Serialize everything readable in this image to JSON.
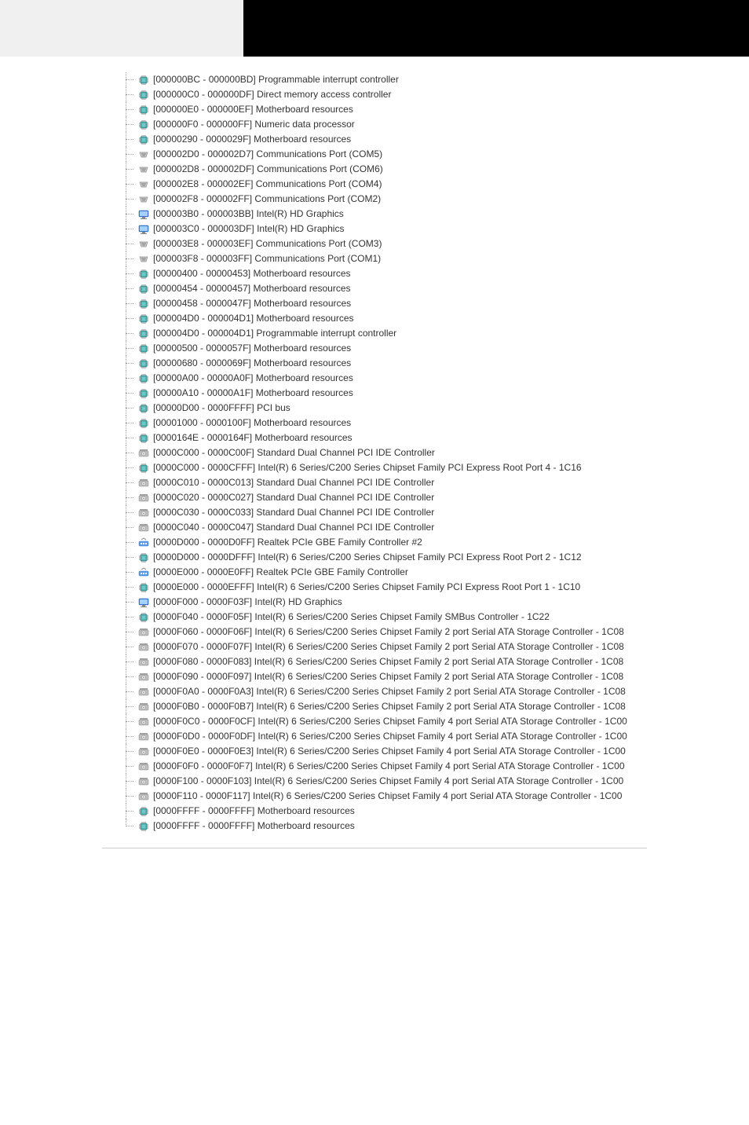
{
  "colors": {
    "text": "#333333",
    "background": "#ffffff",
    "header_left_bg": "#f0f0f0",
    "header_right_bg": "#000000",
    "tree_line": "#a0a0a0",
    "icon_blue": "#3b7dd8",
    "icon_teal": "#4aa8a8",
    "icon_gray": "#808080",
    "footer_line": "#cccccc"
  },
  "fonts": {
    "family": "Segoe UI",
    "size_pt": 9
  },
  "items": [
    {
      "icon": "chip",
      "range": "[000000BC - 000000BD]",
      "label": "Programmable interrupt controller"
    },
    {
      "icon": "chip",
      "range": "[000000C0 - 000000DF]",
      "label": "Direct memory access controller"
    },
    {
      "icon": "chip",
      "range": "[000000E0 - 000000EF]",
      "label": "Motherboard resources"
    },
    {
      "icon": "chip",
      "range": "[000000F0 - 000000FF]",
      "label": "Numeric data processor"
    },
    {
      "icon": "chip",
      "range": "[00000290 - 0000029F]",
      "label": "Motherboard resources"
    },
    {
      "icon": "port",
      "range": "[000002D0 - 000002D7]",
      "label": "Communications Port (COM5)"
    },
    {
      "icon": "port",
      "range": "[000002D8 - 000002DF]",
      "label": "Communications Port (COM6)"
    },
    {
      "icon": "port",
      "range": "[000002E8 - 000002EF]",
      "label": "Communications Port (COM4)"
    },
    {
      "icon": "port",
      "range": "[000002F8 - 000002FF]",
      "label": "Communications Port (COM2)"
    },
    {
      "icon": "display",
      "range": "[000003B0 - 000003BB]",
      "label": "Intel(R) HD Graphics"
    },
    {
      "icon": "display",
      "range": "[000003C0 - 000003DF]",
      "label": "Intel(R) HD Graphics"
    },
    {
      "icon": "port",
      "range": "[000003E8 - 000003EF]",
      "label": "Communications Port (COM3)"
    },
    {
      "icon": "port",
      "range": "[000003F8 - 000003FF]",
      "label": "Communications Port (COM1)"
    },
    {
      "icon": "chip",
      "range": "[00000400 - 00000453]",
      "label": "Motherboard resources"
    },
    {
      "icon": "chip",
      "range": "[00000454 - 00000457]",
      "label": "Motherboard resources"
    },
    {
      "icon": "chip",
      "range": "[00000458 - 0000047F]",
      "label": "Motherboard resources"
    },
    {
      "icon": "chip",
      "range": "[000004D0 - 000004D1]",
      "label": "Motherboard resources"
    },
    {
      "icon": "chip",
      "range": "[000004D0 - 000004D1]",
      "label": "Programmable interrupt controller"
    },
    {
      "icon": "chip",
      "range": "[00000500 - 0000057F]",
      "label": "Motherboard resources"
    },
    {
      "icon": "chip",
      "range": "[00000680 - 0000069F]",
      "label": "Motherboard resources"
    },
    {
      "icon": "chip",
      "range": "[00000A00 - 00000A0F]",
      "label": "Motherboard resources"
    },
    {
      "icon": "chip",
      "range": "[00000A10 - 00000A1F]",
      "label": "Motherboard resources"
    },
    {
      "icon": "chip",
      "range": "[00000D00 - 0000FFFF]",
      "label": "PCI bus"
    },
    {
      "icon": "chip",
      "range": "[00001000 - 0000100F]",
      "label": "Motherboard resources"
    },
    {
      "icon": "chip",
      "range": "[0000164E - 0000164F]",
      "label": "Motherboard resources"
    },
    {
      "icon": "storage",
      "range": "[0000C000 - 0000C00F]",
      "label": "Standard Dual Channel PCI IDE Controller"
    },
    {
      "icon": "chip",
      "range": "[0000C000 - 0000CFFF]",
      "label": "Intel(R) 6 Series/C200 Series Chipset Family PCI Express Root Port 4 - 1C16"
    },
    {
      "icon": "storage",
      "range": "[0000C010 - 0000C013]",
      "label": "Standard Dual Channel PCI IDE Controller"
    },
    {
      "icon": "storage",
      "range": "[0000C020 - 0000C027]",
      "label": "Standard Dual Channel PCI IDE Controller"
    },
    {
      "icon": "storage",
      "range": "[0000C030 - 0000C033]",
      "label": "Standard Dual Channel PCI IDE Controller"
    },
    {
      "icon": "storage",
      "range": "[0000C040 - 0000C047]",
      "label": "Standard Dual Channel PCI IDE Controller"
    },
    {
      "icon": "network",
      "range": "[0000D000 - 0000D0FF]",
      "label": "Realtek PCIe GBE Family Controller #2"
    },
    {
      "icon": "chip",
      "range": "[0000D000 - 0000DFFF]",
      "label": "Intel(R) 6 Series/C200 Series Chipset Family PCI Express Root Port 2 - 1C12"
    },
    {
      "icon": "network",
      "range": "[0000E000 - 0000E0FF]",
      "label": "Realtek PCIe GBE Family Controller"
    },
    {
      "icon": "chip",
      "range": "[0000E000 - 0000EFFF]",
      "label": "Intel(R) 6 Series/C200 Series Chipset Family PCI Express Root Port 1 - 1C10"
    },
    {
      "icon": "display",
      "range": "[0000F000 - 0000F03F]",
      "label": "Intel(R) HD Graphics"
    },
    {
      "icon": "chip",
      "range": "[0000F040 - 0000F05F]",
      "label": "Intel(R) 6 Series/C200 Series Chipset Family SMBus Controller - 1C22"
    },
    {
      "icon": "storage",
      "range": "[0000F060 - 0000F06F]",
      "label": "Intel(R) 6 Series/C200 Series Chipset Family 2 port Serial ATA Storage Controller - 1C08"
    },
    {
      "icon": "storage",
      "range": "[0000F070 - 0000F07F]",
      "label": "Intel(R) 6 Series/C200 Series Chipset Family 2 port Serial ATA Storage Controller - 1C08"
    },
    {
      "icon": "storage",
      "range": "[0000F080 - 0000F083]",
      "label": "Intel(R) 6 Series/C200 Series Chipset Family 2 port Serial ATA Storage Controller - 1C08"
    },
    {
      "icon": "storage",
      "range": "[0000F090 - 0000F097]",
      "label": "Intel(R) 6 Series/C200 Series Chipset Family 2 port Serial ATA Storage Controller - 1C08"
    },
    {
      "icon": "storage",
      "range": "[0000F0A0 - 0000F0A3]",
      "label": "Intel(R) 6 Series/C200 Series Chipset Family 2 port Serial ATA Storage Controller - 1C08"
    },
    {
      "icon": "storage",
      "range": "[0000F0B0 - 0000F0B7]",
      "label": "Intel(R) 6 Series/C200 Series Chipset Family 2 port Serial ATA Storage Controller - 1C08"
    },
    {
      "icon": "storage",
      "range": "[0000F0C0 - 0000F0CF]",
      "label": "Intel(R) 6 Series/C200 Series Chipset Family 4 port Serial ATA Storage Controller - 1C00"
    },
    {
      "icon": "storage",
      "range": "[0000F0D0 - 0000F0DF]",
      "label": "Intel(R) 6 Series/C200 Series Chipset Family 4 port Serial ATA Storage Controller - 1C00"
    },
    {
      "icon": "storage",
      "range": "[0000F0E0 - 0000F0E3]",
      "label": "Intel(R) 6 Series/C200 Series Chipset Family 4 port Serial ATA Storage Controller - 1C00"
    },
    {
      "icon": "storage",
      "range": "[0000F0F0 - 0000F0F7]",
      "label": "Intel(R) 6 Series/C200 Series Chipset Family 4 port Serial ATA Storage Controller - 1C00"
    },
    {
      "icon": "storage",
      "range": "[0000F100 - 0000F103]",
      "label": "Intel(R) 6 Series/C200 Series Chipset Family 4 port Serial ATA Storage Controller - 1C00"
    },
    {
      "icon": "storage",
      "range": "[0000F110 - 0000F117]",
      "label": "Intel(R) 6 Series/C200 Series Chipset Family 4 port Serial ATA Storage Controller - 1C00"
    },
    {
      "icon": "chip",
      "range": "[0000FFFF - 0000FFFF]",
      "label": "Motherboard resources"
    },
    {
      "icon": "chip",
      "range": "[0000FFFF - 0000FFFF]",
      "label": "Motherboard resources"
    }
  ],
  "icon_svg_size": 16
}
